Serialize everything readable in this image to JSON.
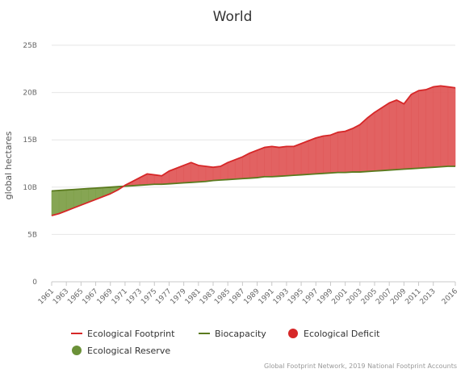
{
  "chart_data": {
    "type": "area",
    "title": "World",
    "ylabel": "global hectares",
    "ylim": [
      0,
      25
    ],
    "y_ticks": [
      "0",
      "5B",
      "10B",
      "15B",
      "20B",
      "25B"
    ],
    "y_tick_values": [
      0,
      5,
      10,
      15,
      20,
      25
    ],
    "y_unit": "billion global hectares",
    "x_ticks": [
      "1961",
      "1963",
      "1965",
      "1967",
      "1969",
      "1971",
      "1973",
      "1975",
      "1977",
      "1979",
      "1981",
      "1983",
      "1985",
      "1987",
      "1989",
      "1991",
      "1993",
      "1995",
      "1997",
      "1999",
      "2001",
      "2003",
      "2005",
      "2007",
      "2009",
      "2011",
      "2013",
      "2016"
    ],
    "x": [
      1961,
      1962,
      1963,
      1964,
      1965,
      1966,
      1967,
      1968,
      1969,
      1970,
      1971,
      1972,
      1973,
      1974,
      1975,
      1976,
      1977,
      1978,
      1979,
      1980,
      1981,
      1982,
      1983,
      1984,
      1985,
      1986,
      1987,
      1988,
      1989,
      1990,
      1991,
      1992,
      1993,
      1994,
      1995,
      1996,
      1997,
      1998,
      1999,
      2000,
      2001,
      2002,
      2003,
      2004,
      2005,
      2006,
      2007,
      2008,
      2009,
      2010,
      2011,
      2012,
      2013,
      2014,
      2015,
      2016
    ],
    "series": [
      {
        "name": "Ecological Footprint",
        "color": "#d62728",
        "values": [
          7.0,
          7.2,
          7.5,
          7.8,
          8.1,
          8.4,
          8.7,
          9.0,
          9.3,
          9.7,
          10.2,
          10.6,
          11.0,
          11.4,
          11.3,
          11.2,
          11.7,
          12.0,
          12.3,
          12.6,
          12.3,
          12.2,
          12.1,
          12.2,
          12.6,
          12.9,
          13.2,
          13.6,
          13.9,
          14.2,
          14.3,
          14.2,
          14.3,
          14.3,
          14.6,
          14.9,
          15.2,
          15.4,
          15.5,
          15.8,
          15.9,
          16.2,
          16.6,
          17.3,
          17.9,
          18.4,
          18.9,
          19.2,
          18.8,
          19.8,
          20.2,
          20.3,
          20.6,
          20.7,
          20.6,
          20.5
        ]
      },
      {
        "name": "Biocapacity",
        "color": "#5a7a1e",
        "values": [
          9.6,
          9.65,
          9.7,
          9.75,
          9.8,
          9.85,
          9.9,
          9.95,
          10.0,
          10.05,
          10.1,
          10.15,
          10.2,
          10.25,
          10.3,
          10.3,
          10.35,
          10.4,
          10.45,
          10.5,
          10.55,
          10.6,
          10.7,
          10.75,
          10.8,
          10.85,
          10.9,
          10.95,
          11.0,
          11.1,
          11.1,
          11.15,
          11.2,
          11.25,
          11.3,
          11.35,
          11.4,
          11.45,
          11.5,
          11.55,
          11.55,
          11.6,
          11.6,
          11.65,
          11.7,
          11.75,
          11.8,
          11.85,
          11.9,
          11.95,
          12.0,
          12.05,
          12.1,
          12.15,
          12.2,
          12.2
        ]
      }
    ],
    "fills": [
      {
        "name": "Ecological Deficit",
        "color": "#e05a5a"
      },
      {
        "name": "Ecological Reserve",
        "color": "#7fa04a"
      }
    ],
    "legend": {
      "placement": "bottom",
      "items": [
        {
          "label": "Ecological Footprint",
          "marker": "line",
          "color": "#d62728"
        },
        {
          "label": "Biocapacity",
          "marker": "line",
          "color": "#5a7a1e"
        },
        {
          "label": "Ecological Deficit",
          "marker": "dot",
          "color": "#d62728"
        },
        {
          "label": "Ecological Reserve",
          "marker": "dot",
          "color": "#6b9138"
        }
      ]
    },
    "grid": "horizontal",
    "credits": "Global Footprint Network, 2019 National Footprint Accounts"
  }
}
